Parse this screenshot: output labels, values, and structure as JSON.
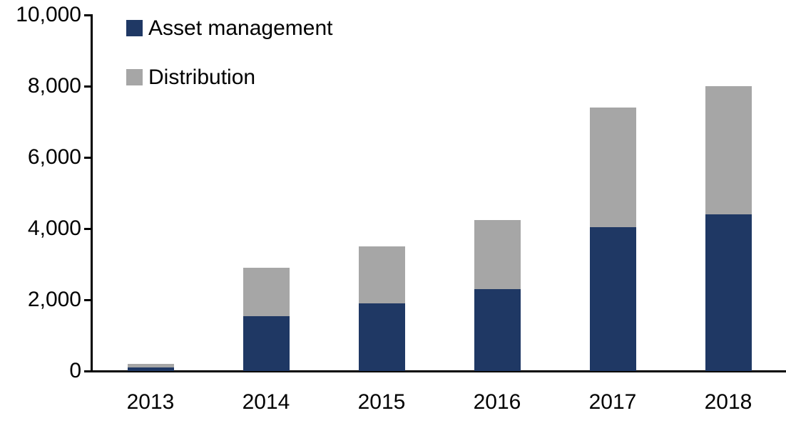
{
  "chart_data": {
    "type": "bar",
    "stacked": true,
    "categories": [
      "2013",
      "2014",
      "2015",
      "2016",
      "2017",
      "2018"
    ],
    "series": [
      {
        "name": "Asset management",
        "color": "#1F3864",
        "values": [
          100,
          1550,
          1900,
          2300,
          4050,
          4400
        ]
      },
      {
        "name": "Distribution",
        "color": "#A6A6A6",
        "values": [
          100,
          1350,
          1600,
          1950,
          3350,
          3600
        ]
      }
    ],
    "title": "",
    "xlabel": "",
    "ylabel": "",
    "ylim": [
      0,
      10000
    ],
    "ytick_step": 2000,
    "ytick_labels": [
      "0",
      "2,000",
      "4,000",
      "6,000",
      "8,000",
      "10,000"
    ],
    "grid": false,
    "legend_position": "top-left-inside",
    "axis_color": "#000000",
    "background_color": "#FFFFFF"
  }
}
